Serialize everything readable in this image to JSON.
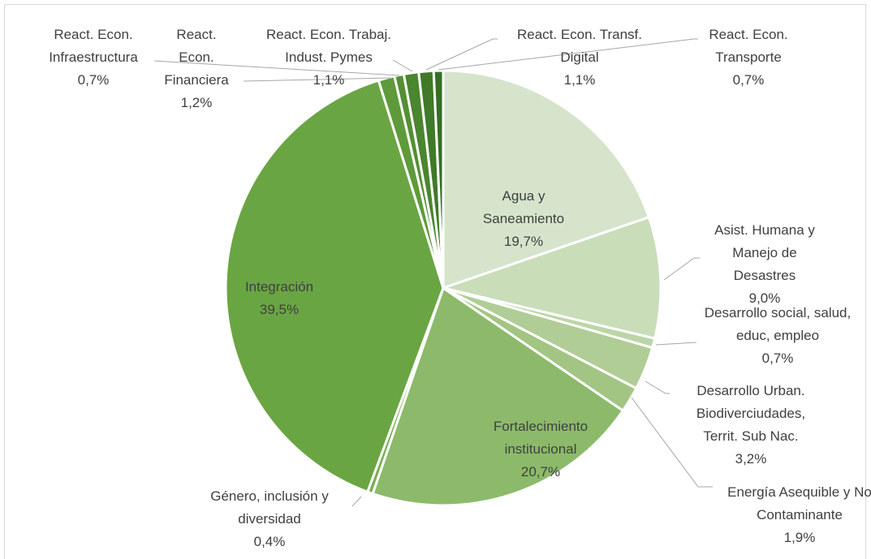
{
  "chart_data": {
    "type": "pie",
    "categories": [
      "Agua y Saneamiento",
      "Asist. Humana y Manejo de Desastres",
      "Desarrollo social, salud, educ, empleo",
      "Desarrollo Urban. Biodiverciudades, Territ. Sub Nac.",
      "Energía Asequible y No Contaminante",
      "Fortalecimiento institucional",
      "Género, inclusión y diversidad",
      "Integración",
      "React. Econ. Financiera",
      "React. Econ. Infraestructura",
      "React. Econ. Trabaj. Indust. Pymes",
      "React. Econ. Transf. Digital",
      "React. Econ. Transporte"
    ],
    "values": [
      19.7,
      9.0,
      0.7,
      3.2,
      1.9,
      20.7,
      0.4,
      39.5,
      1.2,
      0.7,
      1.1,
      1.1,
      0.7
    ],
    "value_labels": [
      "19,7%",
      "9,0%",
      "0,7%",
      "3,2%",
      "1,9%",
      "20,7%",
      "0,4%",
      "39,5%",
      "1,2%",
      "0,7%",
      "1,1%",
      "1,1%",
      "0,7%"
    ],
    "colors": [
      "#d6e4cc",
      "#c9ddb9",
      "#bcd5a7",
      "#afcd95",
      "#a2c583",
      "#8cba6a",
      "#78ae55",
      "#6aa543",
      "#5e9a3a",
      "#548f34",
      "#4a852f",
      "#3f7a29",
      "#356e23"
    ]
  }
}
